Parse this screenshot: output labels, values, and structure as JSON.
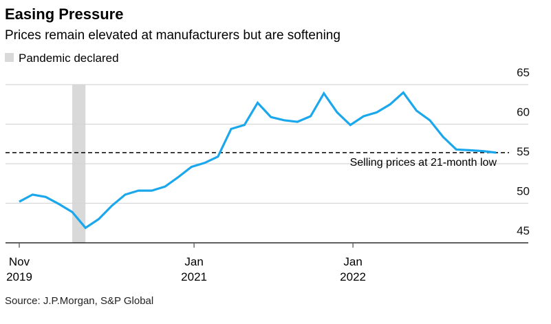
{
  "chart_data": {
    "type": "line",
    "title": "Easing Pressure",
    "subtitle": "Prices remain elevated at manufacturers but are softening",
    "legend": [
      {
        "label": "Pandemic declared",
        "color": "#d9d9d9"
      }
    ],
    "source": "Source: J.P.Morgan, S&P Global",
    "x_start": "Nov 2019",
    "x_unit": "month index from Nov 2019",
    "x_ticks": [
      {
        "at": 0,
        "line1": "Nov",
        "line2": "2019"
      },
      {
        "at": 13.2,
        "line1": "Jan",
        "line2": "2021"
      },
      {
        "at": 25.2,
        "line1": "Jan",
        "line2": "2022"
      }
    ],
    "ylim": [
      45,
      65
    ],
    "y_ticks": [
      45,
      50,
      55,
      60,
      65
    ],
    "grid": true,
    "pandemic_band": [
      4,
      5
    ],
    "series": [
      {
        "name": "Selling prices",
        "color": "#1aa7ec",
        "values": [
          50.2,
          51.1,
          50.8,
          49.9,
          48.9,
          46.9,
          48.0,
          49.7,
          51.1,
          51.6,
          51.6,
          52.1,
          53.3,
          54.6,
          55.1,
          55.9,
          59.4,
          59.9,
          62.7,
          60.9,
          60.5,
          60.3,
          61.0,
          63.9,
          61.5,
          59.9,
          61.0,
          61.5,
          62.5,
          64.0,
          61.7,
          60.5,
          58.4,
          56.8,
          56.7,
          56.6,
          56.4
        ]
      }
    ],
    "reference_line": {
      "value": 56.4,
      "label": "Selling prices at 21-month low"
    }
  }
}
